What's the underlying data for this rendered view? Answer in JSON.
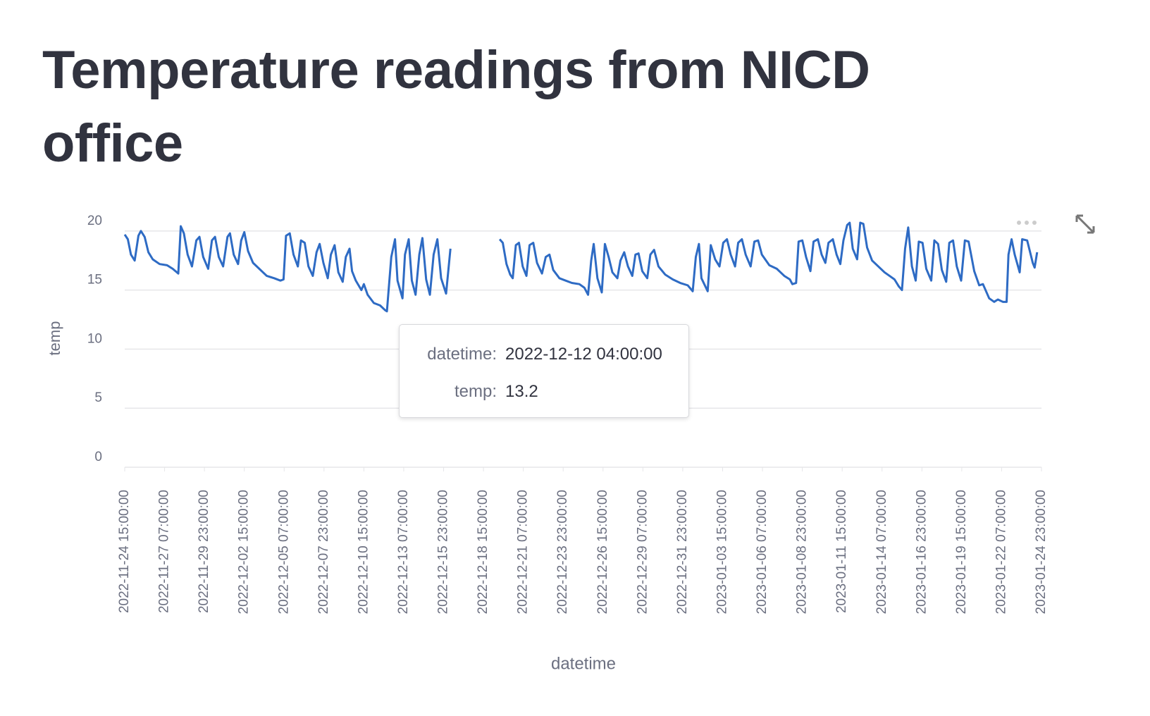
{
  "chart_data": {
    "type": "line",
    "title": "Temperature readings from NICD office",
    "x_label": "datetime",
    "y_label": "temp",
    "color": "#2e6bc4",
    "xlim": [
      "2022-11-24 15:00:00",
      "2023-01-24 23:00:00"
    ],
    "xticks": [
      "2022-11-24 15:00:00",
      "2022-11-27 07:00:00",
      "2022-11-29 23:00:00",
      "2022-12-02 15:00:00",
      "2022-12-05 07:00:00",
      "2022-12-07 23:00:00",
      "2022-12-10 15:00:00",
      "2022-12-13 07:00:00",
      "2022-12-15 23:00:00",
      "2022-12-18 15:00:00",
      "2022-12-21 07:00:00",
      "2022-12-23 23:00:00",
      "2022-12-26 15:00:00",
      "2022-12-29 07:00:00",
      "2022-12-31 23:00:00",
      "2023-01-03 15:00:00",
      "2023-01-06 07:00:00",
      "2023-01-08 23:00:00",
      "2023-01-11 15:00:00",
      "2023-01-14 07:00:00",
      "2023-01-16 23:00:00",
      "2023-01-19 15:00:00",
      "2023-01-22 07:00:00",
      "2023-01-24 23:00:00"
    ],
    "ylim": [
      0,
      21
    ],
    "yticks": [
      0,
      5,
      10,
      15,
      20
    ],
    "grid": true,
    "x": [
      "2022-11-24 15:00:00",
      "2022-11-24 20:00:00",
      "2022-11-25 01:00:00",
      "2022-11-25 07:00:00",
      "2022-11-25 13:00:00",
      "2022-11-25 17:00:00",
      "2022-11-25 23:00:00",
      "2022-11-26 05:00:00",
      "2022-11-26 12:00:00",
      "2022-11-26 23:00:00",
      "2022-11-27 11:00:00",
      "2022-11-27 20:00:00",
      "2022-11-28 05:00:00",
      "2022-11-28 09:00:00",
      "2022-11-28 14:00:00",
      "2022-11-28 20:00:00",
      "2022-11-29 03:00:00",
      "2022-11-29 10:00:00",
      "2022-11-29 15:00:00",
      "2022-11-29 21:00:00",
      "2022-11-30 05:00:00",
      "2022-11-30 11:00:00",
      "2022-11-30 16:00:00",
      "2022-11-30 22:00:00",
      "2022-12-01 05:00:00",
      "2022-12-01 12:00:00",
      "2022-12-01 16:00:00",
      "2022-12-01 22:00:00",
      "2022-12-02 05:00:00",
      "2022-12-02 10:00:00",
      "2022-12-02 15:00:00",
      "2022-12-02 21:00:00",
      "2022-12-03 05:00:00",
      "2022-12-03 15:00:00",
      "2022-12-04 03:00:00",
      "2022-12-04 15:00:00",
      "2022-12-05 01:00:00",
      "2022-12-05 06:00:00",
      "2022-12-05 10:00:00",
      "2022-12-05 16:00:00",
      "2022-12-05 22:00:00",
      "2022-12-06 05:00:00",
      "2022-12-06 10:00:00",
      "2022-12-06 16:00:00",
      "2022-12-06 22:00:00",
      "2022-12-07 05:00:00",
      "2022-12-07 11:00:00",
      "2022-12-07 16:00:00",
      "2022-12-07 22:00:00",
      "2022-12-08 05:00:00",
      "2022-12-08 10:00:00",
      "2022-12-08 16:00:00",
      "2022-12-08 22:00:00",
      "2022-12-09 05:00:00",
      "2022-12-09 10:00:00",
      "2022-12-09 16:00:00",
      "2022-12-09 20:00:00",
      "2022-12-10 02:00:00",
      "2022-12-10 11:00:00",
      "2022-12-10 15:00:00",
      "2022-12-10 21:00:00",
      "2022-12-11 07:00:00",
      "2022-12-11 17:00:00",
      "2022-12-12 01:00:00",
      "2022-12-12 04:00:00",
      "2022-12-12 11:00:00",
      "2022-12-12 17:00:00",
      "2022-12-12 21:00:00",
      "2022-12-13 05:00:00",
      "2022-12-13 09:00:00",
      "2022-12-13 15:00:00",
      "2022-12-13 20:00:00",
      "2022-12-14 02:00:00",
      "2022-12-14 08:00:00",
      "2022-12-14 13:00:00",
      "2022-12-14 19:00:00",
      "2022-12-15 01:00:00",
      "2022-12-15 07:00:00",
      "2022-12-15 13:00:00",
      "2022-12-15 19:00:00",
      "2022-12-16 03:00:00",
      "2022-12-16 10:00:00",
      "2022-12-18 00:00:00",
      "2022-12-19 17:00:00",
      "2022-12-19 22:00:00",
      "2022-12-20 04:00:00",
      "2022-12-20 10:00:00",
      "2022-12-20 14:00:00",
      "2022-12-20 19:00:00",
      "2022-12-21 00:00:00",
      "2022-12-21 06:00:00",
      "2022-12-21 12:00:00",
      "2022-12-21 17:00:00",
      "2022-12-21 23:00:00",
      "2022-12-22 05:00:00",
      "2022-12-22 13:00:00",
      "2022-12-22 19:00:00",
      "2022-12-23 01:00:00",
      "2022-12-23 07:00:00",
      "2022-12-23 17:00:00",
      "2022-12-24 03:00:00",
      "2022-12-24 13:00:00",
      "2022-12-25 01:00:00",
      "2022-12-25 09:00:00",
      "2022-12-25 15:00:00",
      "2022-12-25 20:00:00",
      "2022-12-26 00:00:00",
      "2022-12-26 06:00:00",
      "2022-12-26 13:00:00",
      "2022-12-26 18:00:00",
      "2022-12-27 00:00:00",
      "2022-12-27 06:00:00",
      "2022-12-27 14:00:00",
      "2022-12-27 19:00:00",
      "2022-12-28 01:00:00",
      "2022-12-28 07:00:00",
      "2022-12-28 14:00:00",
      "2022-12-28 19:00:00",
      "2022-12-29 00:00:00",
      "2022-12-29 06:00:00",
      "2022-12-29 14:00:00",
      "2022-12-29 19:00:00",
      "2022-12-30 01:00:00",
      "2022-12-30 08:00:00",
      "2022-12-30 19:00:00",
      "2022-12-31 07:00:00",
      "2022-12-31 19:00:00",
      "2023-01-01 07:00:00",
      "2023-01-01 15:00:00",
      "2023-01-01 20:00:00",
      "2023-01-02 01:00:00",
      "2023-01-02 05:00:00",
      "2023-01-02 15:00:00",
      "2023-01-02 20:00:00",
      "2023-01-03 03:00:00",
      "2023-01-03 10:00:00",
      "2023-01-03 16:00:00",
      "2023-01-03 22:00:00",
      "2023-01-04 04:00:00",
      "2023-01-04 11:00:00",
      "2023-01-04 16:00:00",
      "2023-01-04 22:00:00",
      "2023-01-05 04:00:00",
      "2023-01-05 12:00:00",
      "2023-01-05 18:00:00",
      "2023-01-06 00:00:00",
      "2023-01-06 06:00:00",
      "2023-01-06 18:00:00",
      "2023-01-07 06:00:00",
      "2023-01-07 18:00:00",
      "2023-01-08 03:00:00",
      "2023-01-08 07:00:00",
      "2023-01-08 13:00:00",
      "2023-01-08 17:00:00",
      "2023-01-08 23:00:00",
      "2023-01-09 05:00:00",
      "2023-01-09 12:00:00",
      "2023-01-09 17:00:00",
      "2023-01-10 00:00:00",
      "2023-01-10 06:00:00",
      "2023-01-10 12:00:00",
      "2023-01-10 17:00:00",
      "2023-01-11 00:00:00",
      "2023-01-11 06:00:00",
      "2023-01-11 12:00:00",
      "2023-01-11 17:00:00",
      "2023-01-11 23:00:00",
      "2023-01-12 03:00:00",
      "2023-01-12 08:00:00",
      "2023-01-12 15:00:00",
      "2023-01-12 20:00:00",
      "2023-01-13 01:00:00",
      "2023-01-13 07:00:00",
      "2023-01-13 15:00:00",
      "2023-01-14 01:00:00",
      "2023-01-14 11:00:00",
      "2023-01-14 19:00:00",
      "2023-01-15 03:00:00",
      "2023-01-15 10:00:00",
      "2023-01-15 15:00:00",
      "2023-01-15 20:00:00",
      "2023-01-16 01:00:00",
      "2023-01-16 07:00:00",
      "2023-01-16 13:00:00",
      "2023-01-16 18:00:00",
      "2023-01-17 00:00:00",
      "2023-01-17 06:00:00",
      "2023-01-17 14:00:00",
      "2023-01-17 19:00:00",
      "2023-01-18 01:00:00",
      "2023-01-18 07:00:00",
      "2023-01-18 14:00:00",
      "2023-01-18 19:00:00",
      "2023-01-19 01:00:00",
      "2023-01-19 07:00:00",
      "2023-01-19 14:00:00",
      "2023-01-19 20:00:00",
      "2023-01-20 02:00:00",
      "2023-01-20 11:00:00",
      "2023-01-20 19:00:00",
      "2023-01-21 01:00:00",
      "2023-01-21 11:00:00",
      "2023-01-21 19:00:00",
      "2023-01-22 01:00:00",
      "2023-01-22 09:00:00",
      "2023-01-22 15:00:00",
      "2023-01-22 18:00:00",
      "2023-01-22 23:00:00",
      "2023-01-23 04:00:00",
      "2023-01-23 12:00:00",
      "2023-01-23 16:00:00",
      "2023-01-24 00:00:00",
      "2023-01-24 09:00:00",
      "2023-01-24 12:00:00",
      "2023-01-24 16:00:00"
    ],
    "values": [
      19.7,
      19.3,
      18.0,
      17.5,
      19.6,
      20.0,
      19.5,
      18.2,
      17.6,
      17.2,
      17.1,
      16.8,
      16.4,
      20.4,
      19.8,
      18.0,
      17.0,
      19.2,
      19.5,
      17.8,
      16.8,
      19.2,
      19.5,
      17.8,
      17.0,
      19.5,
      19.8,
      18.0,
      17.2,
      19.2,
      19.9,
      18.3,
      17.3,
      16.8,
      16.2,
      16.0,
      15.8,
      15.9,
      19.6,
      19.8,
      18.0,
      17.0,
      19.2,
      19.0,
      17.0,
      16.2,
      18.2,
      18.9,
      17.3,
      16.0,
      18.0,
      18.8,
      16.5,
      15.7,
      17.8,
      18.5,
      16.6,
      15.8,
      15.0,
      15.5,
      14.6,
      13.9,
      13.7,
      13.3,
      13.2,
      17.8,
      19.3,
      15.8,
      14.3,
      18.0,
      19.3,
      15.8,
      14.6,
      18.0,
      19.4,
      15.9,
      14.6,
      18.0,
      19.3,
      16.0,
      14.7,
      18.5,
      null,
      19.3,
      19.0,
      17.2,
      16.3,
      16.0,
      18.8,
      19.0,
      17.0,
      16.2,
      18.8,
      19.0,
      17.3,
      16.4,
      17.8,
      18.0,
      16.7,
      16.0,
      15.8,
      15.6,
      15.5,
      15.2,
      14.6,
      17.5,
      18.9,
      16.0,
      14.8,
      18.9,
      17.8,
      16.5,
      16.0,
      17.5,
      18.2,
      17.0,
      16.2,
      18.0,
      18.1,
      16.6,
      16.0,
      18.0,
      18.4,
      17.0,
      16.3,
      15.9,
      15.6,
      15.4,
      14.9,
      17.8,
      18.9,
      16.0,
      14.9,
      18.8,
      17.6,
      17.0,
      19.0,
      19.3,
      18.0,
      17.0,
      19.0,
      19.3,
      18.0,
      17.0,
      19.1,
      19.2,
      18.0,
      17.1,
      16.8,
      16.2,
      15.9,
      15.5,
      15.6,
      19.1,
      19.2,
      17.8,
      16.6,
      19.1,
      19.3,
      18.0,
      17.3,
      19.0,
      19.3,
      18.0,
      17.2,
      19.2,
      20.5,
      20.7,
      18.5,
      17.6,
      20.7,
      20.6,
      18.6,
      17.5,
      17.0,
      16.5,
      16.2,
      15.9,
      15.3,
      15.0,
      18.5,
      20.3,
      17.0,
      15.8,
      19.1,
      19.0,
      16.8,
      15.8,
      19.2,
      18.9,
      16.7,
      15.7,
      19.0,
      19.2,
      17.0,
      15.8,
      19.2,
      19.1,
      16.6,
      15.4,
      15.5,
      14.3,
      14.0,
      14.2,
      14.0,
      14.0,
      18.0,
      19.3,
      18.0,
      16.5,
      19.3,
      19.2,
      17.3,
      16.9,
      18.2
    ],
    "tooltip": {
      "labels": [
        "datetime:",
        "temp:"
      ],
      "values": [
        "2022-12-12 04:00:00",
        13.2
      ]
    }
  }
}
